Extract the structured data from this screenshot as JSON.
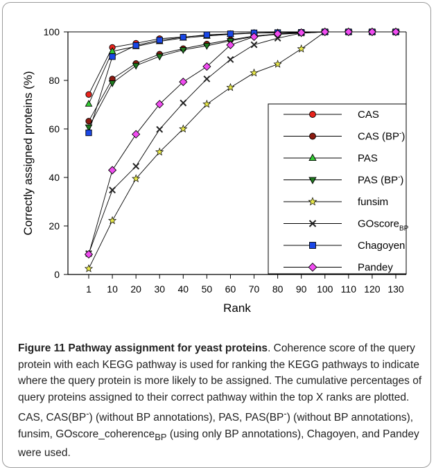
{
  "chart_data": {
    "type": "line",
    "xlabel": "Rank",
    "ylabel": "Correctly assigned proteins (%)",
    "x": [
      1,
      10,
      20,
      30,
      40,
      50,
      60,
      70,
      80,
      90,
      100,
      110,
      120,
      130
    ],
    "xticks": [
      "1",
      "10",
      "20",
      "30",
      "40",
      "50",
      "60",
      "70",
      "80",
      "90",
      "100",
      "110",
      "120",
      "130"
    ],
    "ylim": [
      0,
      100
    ],
    "yticks": [
      "0",
      "20",
      "40",
      "60",
      "80",
      "100"
    ],
    "legend_position": "bottom-right",
    "series": [
      {
        "name": "CAS",
        "sub": "",
        "sup": "",
        "marker": "circle",
        "color": "#e8231c",
        "values": [
          74.2,
          93.6,
          95.3,
          97.2,
          97.9,
          98.6,
          99.2,
          99.6,
          99.7,
          99.8,
          100,
          100,
          100,
          100
        ]
      },
      {
        "name": "CAS (BP",
        "sub": "",
        "sup": "-",
        "suffix": ")",
        "marker": "circle",
        "color": "#8b1a10",
        "values": [
          63.2,
          80.6,
          87.0,
          90.8,
          93.1,
          95.0,
          96.7,
          98.3,
          99.1,
          99.6,
          100,
          100,
          100,
          100
        ]
      },
      {
        "name": "PAS",
        "sub": "",
        "sup": "",
        "marker": "triangle-up",
        "color": "#33cc33",
        "values": [
          70.3,
          92.0,
          94.0,
          96.1,
          97.5,
          98.3,
          99.0,
          99.5,
          99.7,
          99.8,
          100,
          100,
          100,
          100
        ]
      },
      {
        "name": "PAS (BP",
        "sub": "",
        "sup": "-",
        "suffix": ")",
        "marker": "triangle-down",
        "color": "#1f7a1f",
        "values": [
          60.7,
          78.9,
          86.1,
          89.9,
          92.6,
          94.3,
          96.3,
          98.1,
          99.0,
          99.5,
          100,
          100,
          100,
          100
        ]
      },
      {
        "name": "funsim",
        "sub": "",
        "sup": "",
        "marker": "star",
        "color": "#e8e84a",
        "values": [
          2.4,
          22.2,
          39.5,
          50.5,
          60.0,
          70.2,
          77.1,
          83.1,
          86.7,
          93.0,
          100,
          100,
          100,
          100
        ]
      },
      {
        "name": "GOscore",
        "sub": "BP",
        "sup": "",
        "marker": "x",
        "color": "#222222",
        "values": [
          8.6,
          34.8,
          44.6,
          59.8,
          70.7,
          80.6,
          88.6,
          94.7,
          97.4,
          99.5,
          100,
          100,
          100,
          100
        ]
      },
      {
        "name": "Chagoyen",
        "sub": "",
        "sup": "",
        "marker": "square",
        "color": "#1a47e6",
        "values": [
          58.4,
          89.8,
          94.4,
          96.6,
          97.8,
          98.8,
          99.2,
          99.6,
          99.7,
          99.8,
          100,
          100,
          100,
          100
        ]
      },
      {
        "name": "Pandey",
        "sub": "",
        "sup": "",
        "marker": "diamond",
        "color": "#f04cf0",
        "values": [
          8.3,
          43.0,
          57.8,
          70.2,
          79.4,
          85.7,
          94.6,
          98.0,
          99.2,
          99.7,
          100,
          100,
          100,
          100
        ]
      }
    ]
  },
  "caption": {
    "title": "Figure 11 Pathway assignment for yeast proteins",
    "body_1": ". Coherence score of the query protein with each KEGG pathway is used for ranking the KEGG pathways to indicate where the query protein is more likely to be assigned. The cumulative percentages of query proteins assigned to their correct pathway within the top X ranks are plotted. CAS, CAS(BP",
    "sup_1": "-",
    "body_2": ") (without BP annotations), PAS, PAS(BP",
    "sup_2": "-",
    "body_3": ") (without BP annotations), funsim, GOscore_coherence",
    "sub_1": "BP",
    "body_4": " (using only BP annotations), Chagoyen, and Pandey were used."
  }
}
